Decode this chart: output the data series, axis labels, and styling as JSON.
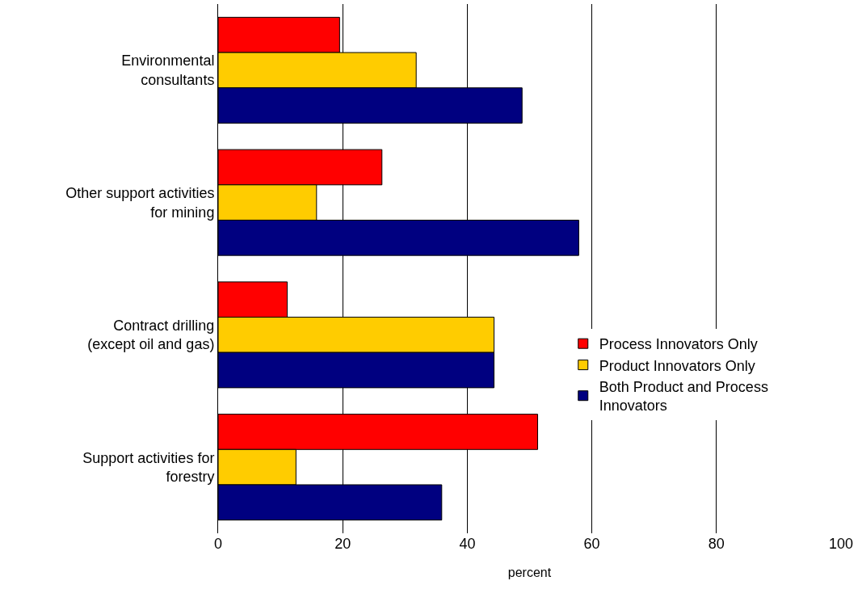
{
  "chart_data": {
    "type": "bar",
    "orientation": "horizontal",
    "xlabel": "percent",
    "categories": [
      "Environmental consultants",
      "Other support activities for mining",
      "Contract drilling (except oil and gas)",
      "Support activities for forestry"
    ],
    "series": [
      {
        "name": "Process Innovators Only",
        "color": "#ff0000",
        "values": [
          19.5,
          26.3,
          11.1,
          51.3
        ]
      },
      {
        "name": "Product Innovators Only",
        "color": "#ffcc00",
        "values": [
          31.8,
          15.8,
          44.3,
          12.5
        ]
      },
      {
        "name": "Both Product and Process Innovators",
        "color": "#000080",
        "values": [
          48.8,
          57.9,
          44.3,
          35.9
        ]
      }
    ],
    "xlim": [
      0,
      100
    ],
    "xticks": [
      0,
      20,
      40,
      60,
      80,
      100
    ],
    "grid": "x",
    "legend": "right"
  }
}
